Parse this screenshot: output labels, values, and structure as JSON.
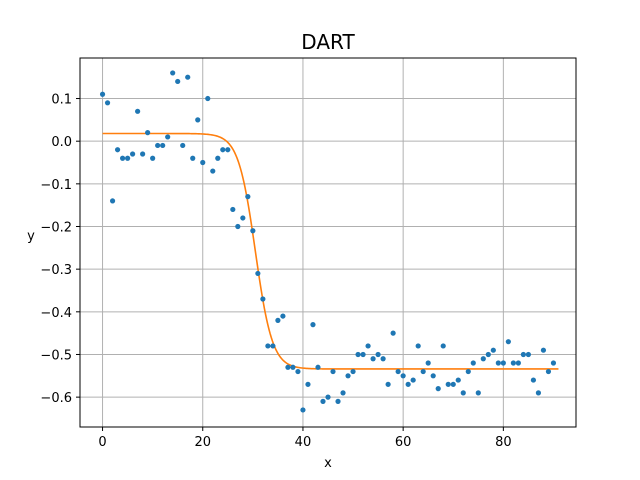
{
  "chart_data": {
    "type": "scatter",
    "title": "DART",
    "xlabel": "x",
    "ylabel": "y",
    "xlim": [
      -4.5,
      94.5
    ],
    "ylim": [
      -0.67,
      0.195
    ],
    "grid": true,
    "x_ticks": [
      0,
      20,
      40,
      60,
      80
    ],
    "y_ticks": [
      0.1,
      0.0,
      -0.1,
      -0.2,
      -0.3,
      -0.4,
      -0.5,
      -0.6
    ],
    "x_tick_labels": [
      "0",
      "20",
      "40",
      "60",
      "80"
    ],
    "y_tick_labels": [
      "0.1",
      "0.0",
      "−0.1",
      "−0.2",
      "−0.3",
      "−0.4",
      "−0.5",
      "−0.6"
    ],
    "series": [
      {
        "type": "scatter",
        "color": "#1f77b4",
        "x": [
          0,
          1,
          2,
          3,
          4,
          5,
          6,
          7,
          8,
          9,
          10,
          11,
          12,
          13,
          14,
          15,
          16,
          17,
          18,
          19,
          20,
          21,
          22,
          23,
          24,
          25,
          26,
          27,
          28,
          29,
          30,
          31,
          32,
          33,
          34,
          35,
          36,
          37,
          38,
          39,
          40,
          41,
          42,
          43,
          44,
          45,
          46,
          47,
          48,
          49,
          50,
          51,
          52,
          53,
          54,
          55,
          56,
          57,
          58,
          59,
          60,
          61,
          62,
          63,
          64,
          65,
          66,
          67,
          68,
          69,
          70,
          71,
          72,
          73,
          74,
          75,
          76,
          77,
          78,
          79,
          80,
          81,
          82,
          83,
          84,
          85,
          86,
          87,
          88,
          89,
          90
        ],
        "y": [
          0.11,
          0.09,
          -0.14,
          -0.02,
          -0.04,
          -0.04,
          -0.03,
          0.07,
          -0.03,
          0.02,
          -0.04,
          -0.01,
          -0.01,
          0.01,
          0.16,
          0.14,
          -0.01,
          0.15,
          -0.04,
          0.05,
          -0.05,
          0.1,
          -0.07,
          -0.04,
          -0.02,
          -0.02,
          -0.16,
          -0.2,
          -0.18,
          -0.13,
          -0.21,
          -0.31,
          -0.37,
          -0.48,
          -0.48,
          -0.42,
          -0.41,
          -0.53,
          -0.53,
          -0.54,
          -0.63,
          -0.57,
          -0.43,
          -0.53,
          -0.61,
          -0.6,
          -0.54,
          -0.61,
          -0.59,
          -0.55,
          -0.54,
          -0.5,
          -0.5,
          -0.48,
          -0.51,
          -0.5,
          -0.51,
          -0.57,
          -0.45,
          -0.54,
          -0.55,
          -0.57,
          -0.56,
          -0.48,
          -0.54,
          -0.52,
          -0.55,
          -0.58,
          -0.48,
          -0.57,
          -0.57,
          -0.56,
          -0.59,
          -0.54,
          -0.52,
          -0.59,
          -0.51,
          -0.5,
          -0.49,
          -0.52,
          -0.52,
          -0.47,
          -0.52,
          -0.52,
          -0.5,
          -0.5,
          -0.56,
          -0.59,
          -0.49,
          -0.54,
          -0.52
        ]
      },
      {
        "type": "line",
        "color": "#ff7f0e",
        "model": "logistic",
        "params": {
          "top": 0.018,
          "bottom": -0.534,
          "center": 30.5,
          "scale": 1.7
        },
        "x_range": [
          0,
          91
        ]
      }
    ]
  }
}
